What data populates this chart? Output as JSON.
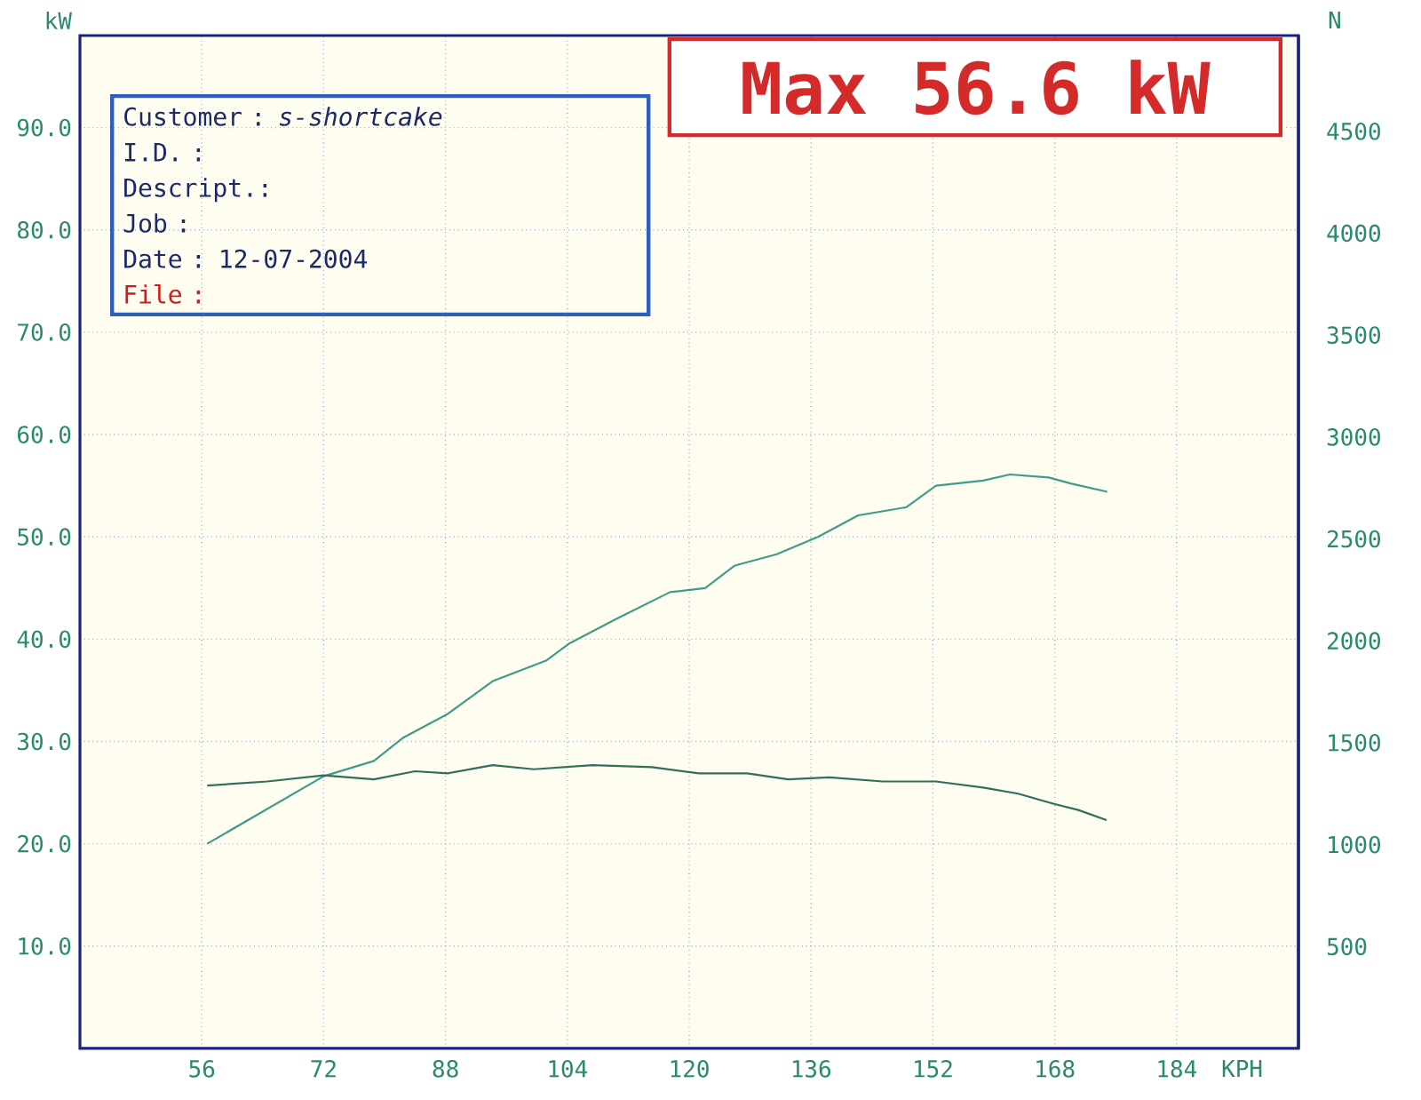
{
  "chart_data": {
    "type": "line",
    "xlabel": "KPH",
    "ylabel": "kW",
    "y2label": "N",
    "xlim": [
      40,
      200
    ],
    "xticks": [
      56,
      72,
      88,
      104,
      120,
      136,
      152,
      168,
      184
    ],
    "ylim": [
      0,
      99
    ],
    "yticks": [
      {
        "value": 10,
        "label": "10.0"
      },
      {
        "value": 20,
        "label": "20.0"
      },
      {
        "value": 30,
        "label": "30.0"
      },
      {
        "value": 40,
        "label": "40.0"
      },
      {
        "value": 50,
        "label": "50.0"
      },
      {
        "value": 60,
        "label": "60.0"
      },
      {
        "value": 70,
        "label": "70.0"
      },
      {
        "value": 80,
        "label": "80.0"
      },
      {
        "value": 90,
        "label": "90.0"
      }
    ],
    "y2lim": [
      0,
      4970
    ],
    "y2ticks": [
      500,
      1000,
      1500,
      2000,
      2500,
      3000,
      3500,
      4000,
      4500
    ],
    "grid": true,
    "series": [
      {
        "color": "#3f9c8c",
        "x": [
          56.7,
          72.0,
          78.6,
          82.5,
          88.3,
          94.2,
          101.2,
          104.3,
          110.5,
          117.5,
          122.1,
          126.0,
          131.5,
          136.9,
          142.2,
          146.2,
          148.5,
          152.4,
          158.6,
          162.1,
          167.2,
          170.2,
          174.9
        ],
        "values": [
          20.0,
          26.6,
          28.1,
          30.4,
          32.7,
          35.9,
          37.9,
          39.6,
          42.0,
          44.6,
          45.0,
          47.2,
          48.3,
          50.0,
          52.1,
          52.6,
          52.9,
          55.0,
          55.5,
          56.1,
          55.8,
          55.2,
          54.4
        ]
      },
      {
        "color": "#2f6f5c",
        "axis": "y2",
        "x": [
          56.7,
          64.6,
          72.0,
          78.6,
          84.0,
          88.3,
          94.2,
          99.6,
          107.3,
          115.1,
          121.3,
          127.6,
          133.0,
          138.4,
          145.4,
          152.4,
          158.6,
          163.2,
          167.9,
          171.1,
          174.8
        ],
        "values": [
          1290,
          1310,
          1340,
          1320,
          1360,
          1350,
          1390,
          1370,
          1390,
          1380,
          1350,
          1350,
          1320,
          1330,
          1310,
          1310,
          1280,
          1250,
          1200,
          1170,
          1120
        ]
      }
    ],
    "annotations": [
      "Max 56.6 kW",
      "Customer : *s-shortcake*",
      "I.D.     :",
      "Descript.:",
      "Job      :",
      "Date     : 12-07-2004",
      "File     :"
    ]
  }
}
